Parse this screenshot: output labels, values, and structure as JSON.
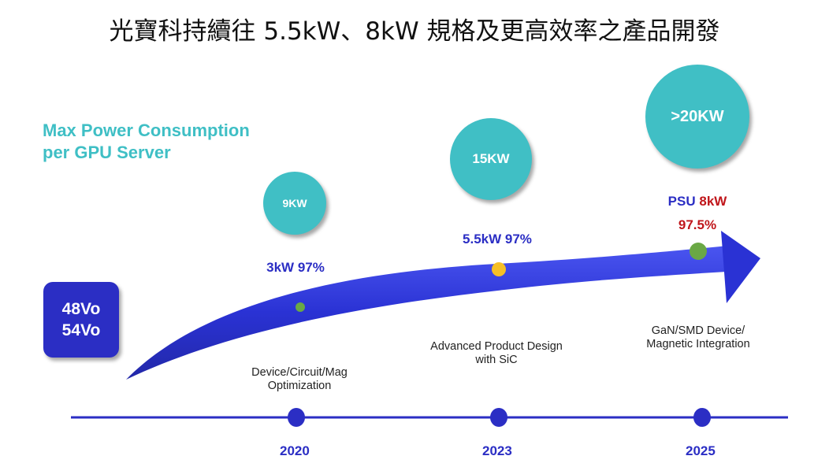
{
  "title": "光寶科持續往 5.5kW、8kW 規格及更高效率之產品開發",
  "subtitle": {
    "line1": "Max Power Consumption",
    "line2": "per GPU Server"
  },
  "voltage_box": {
    "line1": "48Vo",
    "line2": "54Vo"
  },
  "milestones": [
    {
      "year": "2020",
      "server_power": "9KW",
      "psu_label": "3kW 97%",
      "description_line1": "Device/Circuit/Mag",
      "description_line2": "Optimization",
      "dot_color": "#6aa845"
    },
    {
      "year": "2023",
      "server_power": "15KW",
      "psu_label": "5.5kW 97%",
      "description_line1": "Advanced Product Design",
      "description_line2": "with SiC",
      "dot_color": "#f6bf26"
    },
    {
      "year": "2025",
      "server_power": ">20KW",
      "psu_prefix": "PSU",
      "psu_power": "8kW",
      "psu_efficiency": "97.5%",
      "description_line1": "GaN/SMD Device/",
      "description_line2": "Magnetic Integration",
      "dot_color": "#6aa845"
    }
  ],
  "colors": {
    "teal": "#40bfc5",
    "blue": "#2b2ec4",
    "red": "#c0161b"
  }
}
